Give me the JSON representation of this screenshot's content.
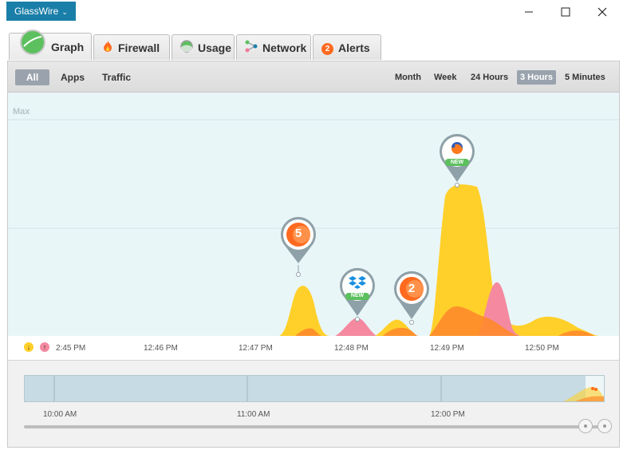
{
  "app": {
    "menu_label": "GlassWire"
  },
  "tabs": [
    {
      "label": "Graph",
      "icon": "graph-icon"
    },
    {
      "label": "Firewall",
      "icon": "flame-icon"
    },
    {
      "label": "Usage",
      "icon": "usage-icon"
    },
    {
      "label": "Network",
      "icon": "network-icon"
    },
    {
      "label": "Alerts",
      "icon": "alerts-badge-icon",
      "badge": "2"
    }
  ],
  "filters": [
    "All",
    "Apps",
    "Traffic"
  ],
  "ranges": [
    "Month",
    "Week",
    "24 Hours",
    "3 Hours",
    "5 Minutes"
  ],
  "graph": {
    "max_label": "Max",
    "time_labels": [
      "2:45 PM",
      "12:46 PM",
      "12:47 PM",
      "12:48 PM",
      "12:49 PM",
      "12:50 PM"
    ],
    "pins": [
      {
        "label": "5",
        "icon": "count-badge-icon"
      },
      {
        "label": "NEW",
        "icon": "dropbox-icon"
      },
      {
        "label": "2",
        "icon": "count-badge-icon"
      },
      {
        "label": "NEW",
        "icon": "firefox-icon"
      }
    ]
  },
  "overview": {
    "time_labels": [
      "10:00 AM",
      "11:00 AM",
      "12:00 PM"
    ]
  },
  "colors": {
    "incoming": "#ffd02a",
    "outgoing": "#f4799a",
    "accent": "#ff7a1f",
    "brand": "#1a7fa8"
  }
}
